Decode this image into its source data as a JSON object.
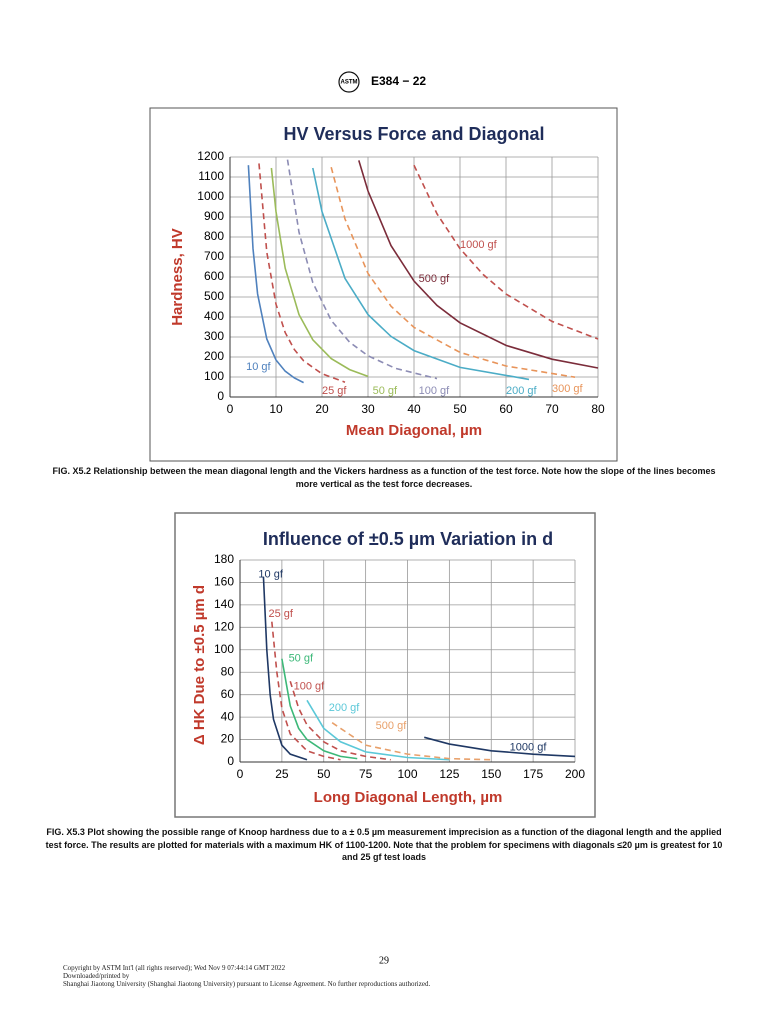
{
  "header": {
    "logo": "ASTM",
    "designation": "E384 − 22"
  },
  "chart_data": [
    {
      "type": "line",
      "title": "HV Versus Force and Diagonal",
      "x_label": "Mean Diagonal, µm",
      "y_label": "Hardness, HV",
      "xlim": [
        0,
        80
      ],
      "xticks": [
        0,
        10,
        20,
        30,
        40,
        50,
        60,
        70,
        80
      ],
      "ylim": [
        0,
        1200
      ],
      "yticks": [
        0,
        100,
        200,
        300,
        400,
        500,
        600,
        700,
        800,
        900,
        1000,
        1100,
        1200
      ],
      "grid": true,
      "series": [
        {
          "name": "10 gf",
          "color": "#4f81bd",
          "dashed": false,
          "x": [
            4,
            5,
            6,
            8,
            10,
            12,
            14,
            16
          ],
          "values": [
            1159,
            742,
            515,
            290,
            185,
            129,
            95,
            72
          ]
        },
        {
          "name": "25 gf",
          "color": "#c0504d",
          "dashed": true,
          "x": [
            6.3,
            8,
            10,
            12,
            14,
            16,
            20,
            25
          ],
          "values": [
            1168,
            724,
            464,
            322,
            237,
            181,
            116,
            74
          ]
        },
        {
          "name": "50 gf",
          "color": "#9bbb59",
          "dashed": false,
          "x": [
            9,
            10,
            12,
            15,
            18,
            22,
            26,
            30
          ],
          "values": [
            1145,
            927,
            644,
            412,
            286,
            192,
            137,
            103
          ]
        },
        {
          "name": "100 gf",
          "color": "#8c8cb4",
          "dashed": true,
          "x": [
            12.5,
            15,
            18,
            22,
            26,
            30,
            36,
            45
          ],
          "values": [
            1187,
            824,
            572,
            383,
            274,
            206,
            143,
            92
          ]
        },
        {
          "name": "200 gf",
          "color": "#4bacc6",
          "dashed": false,
          "x": [
            18,
            20,
            25,
            30,
            35,
            40,
            50,
            65
          ],
          "values": [
            1145,
            927,
            593,
            412,
            303,
            232,
            148,
            88
          ]
        },
        {
          "name": "300 gf",
          "color": "#e8945a",
          "dashed": true,
          "x": [
            22,
            25,
            30,
            35,
            40,
            50,
            60,
            75
          ],
          "values": [
            1149,
            890,
            618,
            454,
            348,
            223,
            155,
            99
          ]
        },
        {
          "name": "500 gf",
          "color": "#7b2c3a",
          "dashed": false,
          "x": [
            28,
            30,
            35,
            40,
            45,
            50,
            60,
            70,
            80
          ],
          "values": [
            1183,
            1030,
            757,
            580,
            458,
            371,
            258,
            189,
            145
          ]
        },
        {
          "name": "1000 gf",
          "color": "#c0504d",
          "dashed": true,
          "x": [
            40,
            45,
            50,
            55,
            60,
            70,
            80
          ],
          "values": [
            1159,
            916,
            742,
            613,
            515,
            378,
            290
          ]
        }
      ]
    },
    {
      "type": "line",
      "title": "Influence of ±0.5 µm Variation in d",
      "x_label": "Long Diagonal Length, µm",
      "y_label": "Δ HK Due to ±0.5 µm d",
      "xlim": [
        0,
        200
      ],
      "xticks": [
        0,
        25,
        50,
        75,
        100,
        125,
        150,
        175,
        200
      ],
      "ylim": [
        0,
        180
      ],
      "yticks": [
        0,
        20,
        40,
        60,
        80,
        100,
        120,
        140,
        160,
        180
      ],
      "grid": true,
      "series": [
        {
          "name": "10 gf",
          "color": "#1f3864",
          "dashed": false,
          "x": [
            14,
            16,
            18,
            20,
            25,
            30,
            40
          ],
          "values": [
            165,
            100,
            60,
            38,
            15,
            7,
            2
          ]
        },
        {
          "name": "25 gf",
          "color": "#c0504d",
          "dashed": true,
          "x": [
            19,
            22,
            25,
            30,
            40,
            50,
            60
          ],
          "values": [
            125,
            80,
            48,
            25,
            10,
            5,
            2
          ]
        },
        {
          "name": "50 gf",
          "color": "#3cb878",
          "dashed": false,
          "x": [
            25,
            30,
            35,
            40,
            50,
            60,
            70
          ],
          "values": [
            92,
            50,
            30,
            20,
            10,
            5,
            3
          ]
        },
        {
          "name": "100 gf",
          "color": "#c0504d",
          "dashed": true,
          "x": [
            30,
            35,
            40,
            50,
            60,
            75,
            90
          ],
          "values": [
            72,
            48,
            33,
            18,
            10,
            5,
            2
          ]
        },
        {
          "name": "200 gf",
          "color": "#5bc8d8",
          "dashed": false,
          "x": [
            40,
            50,
            60,
            75,
            100,
            125
          ],
          "values": [
            55,
            30,
            18,
            9,
            4,
            2
          ]
        },
        {
          "name": "500 gf",
          "color": "#e8a06a",
          "dashed": true,
          "x": [
            55,
            75,
            100,
            125,
            150
          ],
          "values": [
            35,
            15,
            7,
            3,
            2
          ]
        },
        {
          "name": "1000 gf",
          "color": "#1f3864",
          "dashed": false,
          "x": [
            110,
            125,
            150,
            175,
            200
          ],
          "values": [
            22,
            16,
            10,
            7,
            5
          ]
        }
      ]
    }
  ],
  "captions": [
    "FIG. X5.2 Relationship between the mean diagonal length and the Vickers hardness as a function of the test force. Note how the slope of the lines becomes more vertical as the test force decreases.",
    "FIG. X5.3 Plot showing the possible range of Knoop hardness due to a ± 0.5 µm measurement imprecision as a function of the diagonal length and the applied test force. The results are plotted for materials with a maximum HK of 1100-1200. Note that the problem for specimens with diagonals ≤20 µm is greatest for 10 and 25 gf test loads"
  ],
  "page_number": "29",
  "footer": [
    "Copyright by ASTM Int'l (all rights reserved); Wed Nov 9 07:44:14 GMT 2022",
    "Downloaded/printed by",
    "Shanghai Jiaotong University (Shanghai Jiaotong University) pursuant to License Agreement. No further reproductions authorized."
  ]
}
